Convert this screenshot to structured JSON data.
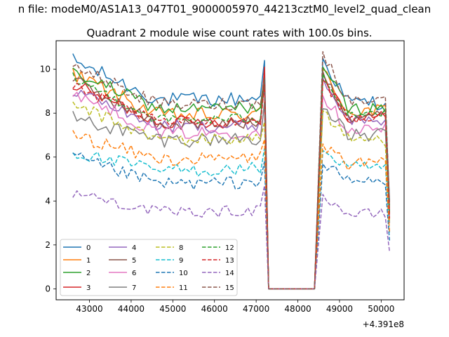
{
  "suptitle": "n file: modeM0/AS1A13_047T01_9000005970_44213cztM0_level2_quad_clean",
  "chart_data": {
    "type": "line",
    "title": "Quadrant 2 module wise count rates with 100.0s bins.",
    "xlabel": "",
    "ylabel": "",
    "x_offset_label": "+4.391e8",
    "xlim": [
      42200,
      50550
    ],
    "ylim": [
      -0.5,
      11.3
    ],
    "xticks": [
      43000,
      44000,
      45000,
      46000,
      47000,
      48000,
      49000,
      50000
    ],
    "yticks": [
      0,
      2,
      4,
      6,
      8,
      10
    ],
    "grid": false,
    "legend": {
      "position": "lower-left",
      "columns": 4
    },
    "x_shape": {
      "start": 42600,
      "step": 100,
      "seg1_end": 47100,
      "peak_at": 47200,
      "drop_to_zero_at": 47400,
      "zero_until": 48400,
      "jump_at": 48600,
      "seg2_end": 50100,
      "last": 50200
    },
    "series": [
      {
        "name": "0",
        "color": "#1f77b4",
        "dash": "solid",
        "start": 10.4,
        "seg1": 8.6,
        "peak": 10.4,
        "after": 10.5,
        "seg2": 8.5,
        "last": 4.0,
        "noise": 0.35
      },
      {
        "name": "1",
        "color": "#ff7f0e",
        "dash": "solid",
        "start": 9.8,
        "seg1": 7.9,
        "peak": 9.6,
        "after": 10.0,
        "seg2": 8.1,
        "last": 3.2,
        "noise": 0.35
      },
      {
        "name": "2",
        "color": "#2ca02c",
        "dash": "solid",
        "start": 9.9,
        "seg1": 8.2,
        "peak": 9.8,
        "after": 10.1,
        "seg2": 8.2,
        "last": 3.5,
        "noise": 0.3
      },
      {
        "name": "3",
        "color": "#d62728",
        "dash": "solid",
        "start": 9.3,
        "seg1": 7.6,
        "peak": 10.1,
        "after": 9.8,
        "seg2": 7.8,
        "last": 3.6,
        "noise": 0.3
      },
      {
        "name": "4",
        "color": "#9467bd",
        "dash": "solid",
        "start": 9.1,
        "seg1": 7.4,
        "peak": 9.2,
        "after": 9.6,
        "seg2": 7.7,
        "last": 3.4,
        "noise": 0.3
      },
      {
        "name": "5",
        "color": "#8c564b",
        "dash": "solid",
        "start": 9.5,
        "seg1": 7.5,
        "peak": 9.4,
        "after": 9.9,
        "seg2": 7.9,
        "last": 3.8,
        "noise": 0.3
      },
      {
        "name": "6",
        "color": "#e377c2",
        "dash": "solid",
        "start": 9.0,
        "seg1": 7.1,
        "peak": 8.4,
        "after": 8.8,
        "seg2": 7.3,
        "last": 3.3,
        "noise": 0.3
      },
      {
        "name": "7",
        "color": "#7f7f7f",
        "dash": "solid",
        "start": 7.8,
        "seg1": 6.8,
        "peak": 8.5,
        "after": 8.2,
        "seg2": 7.0,
        "last": 3.0,
        "noise": 0.35
      },
      {
        "name": "8",
        "color": "#bcbd22",
        "dash": "dashed",
        "start": 8.4,
        "seg1": 6.8,
        "peak": 7.6,
        "after": 8.1,
        "seg2": 6.8,
        "last": 3.1,
        "noise": 0.3
      },
      {
        "name": "9",
        "color": "#17becf",
        "dash": "dashed",
        "start": 6.2,
        "seg1": 5.4,
        "peak": 6.4,
        "after": 6.3,
        "seg2": 5.5,
        "last": 2.5,
        "noise": 0.3
      },
      {
        "name": "10",
        "color": "#1f77b4",
        "dash": "dashed",
        "start": 6.0,
        "seg1": 4.8,
        "peak": 5.8,
        "after": 5.7,
        "seg2": 4.9,
        "last": 2.2,
        "noise": 0.3
      },
      {
        "name": "11",
        "color": "#ff7f0e",
        "dash": "dashed",
        "start": 7.0,
        "seg1": 5.9,
        "peak": 6.8,
        "after": 6.6,
        "seg2": 5.7,
        "last": 2.6,
        "noise": 0.3
      },
      {
        "name": "12",
        "color": "#2ca02c",
        "dash": "dashed",
        "start": 9.6,
        "seg1": 7.7,
        "peak": 9.5,
        "after": 9.8,
        "seg2": 8.0,
        "last": 3.4,
        "noise": 0.25
      },
      {
        "name": "13",
        "color": "#d62728",
        "dash": "dashed",
        "start": 9.2,
        "seg1": 7.6,
        "peak": 9.3,
        "after": 9.5,
        "seg2": 7.8,
        "last": 3.2,
        "noise": 0.25
      },
      {
        "name": "14",
        "color": "#9467bd",
        "dash": "dashed",
        "start": 4.4,
        "seg1": 3.5,
        "peak": 4.7,
        "after": 4.3,
        "seg2": 3.4,
        "last": 1.7,
        "noise": 0.25
      },
      {
        "name": "15",
        "color": "#8c564b",
        "dash": "dashed",
        "start": 10.2,
        "seg1": 8.4,
        "peak": 9.6,
        "after": 10.8,
        "seg2": 8.6,
        "last": 3.9,
        "noise": 0.3
      }
    ]
  }
}
